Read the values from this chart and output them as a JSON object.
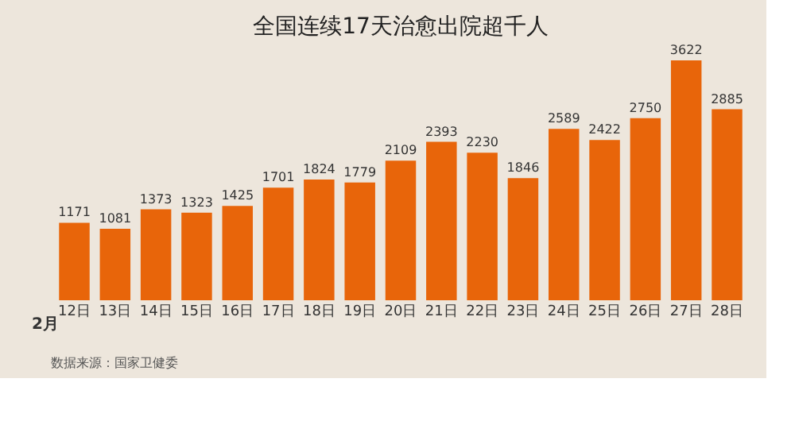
{
  "chart_data": {
    "type": "bar",
    "title": "全国连续17天治愈出院超千人",
    "categories": [
      "12日",
      "13日",
      "14日",
      "15日",
      "16日",
      "17日",
      "18日",
      "19日",
      "20日",
      "21日",
      "22日",
      "23日",
      "24日",
      "25日",
      "26日",
      "27日",
      "28日"
    ],
    "values": [
      1171,
      1081,
      1373,
      1323,
      1425,
      1701,
      1824,
      1779,
      2109,
      2393,
      2230,
      1846,
      2589,
      2422,
      2750,
      3622,
      2885
    ],
    "color": "#e8650a",
    "data_labels": true,
    "annotations": [
      "2月",
      "数据来源：国家卫健委"
    ]
  }
}
